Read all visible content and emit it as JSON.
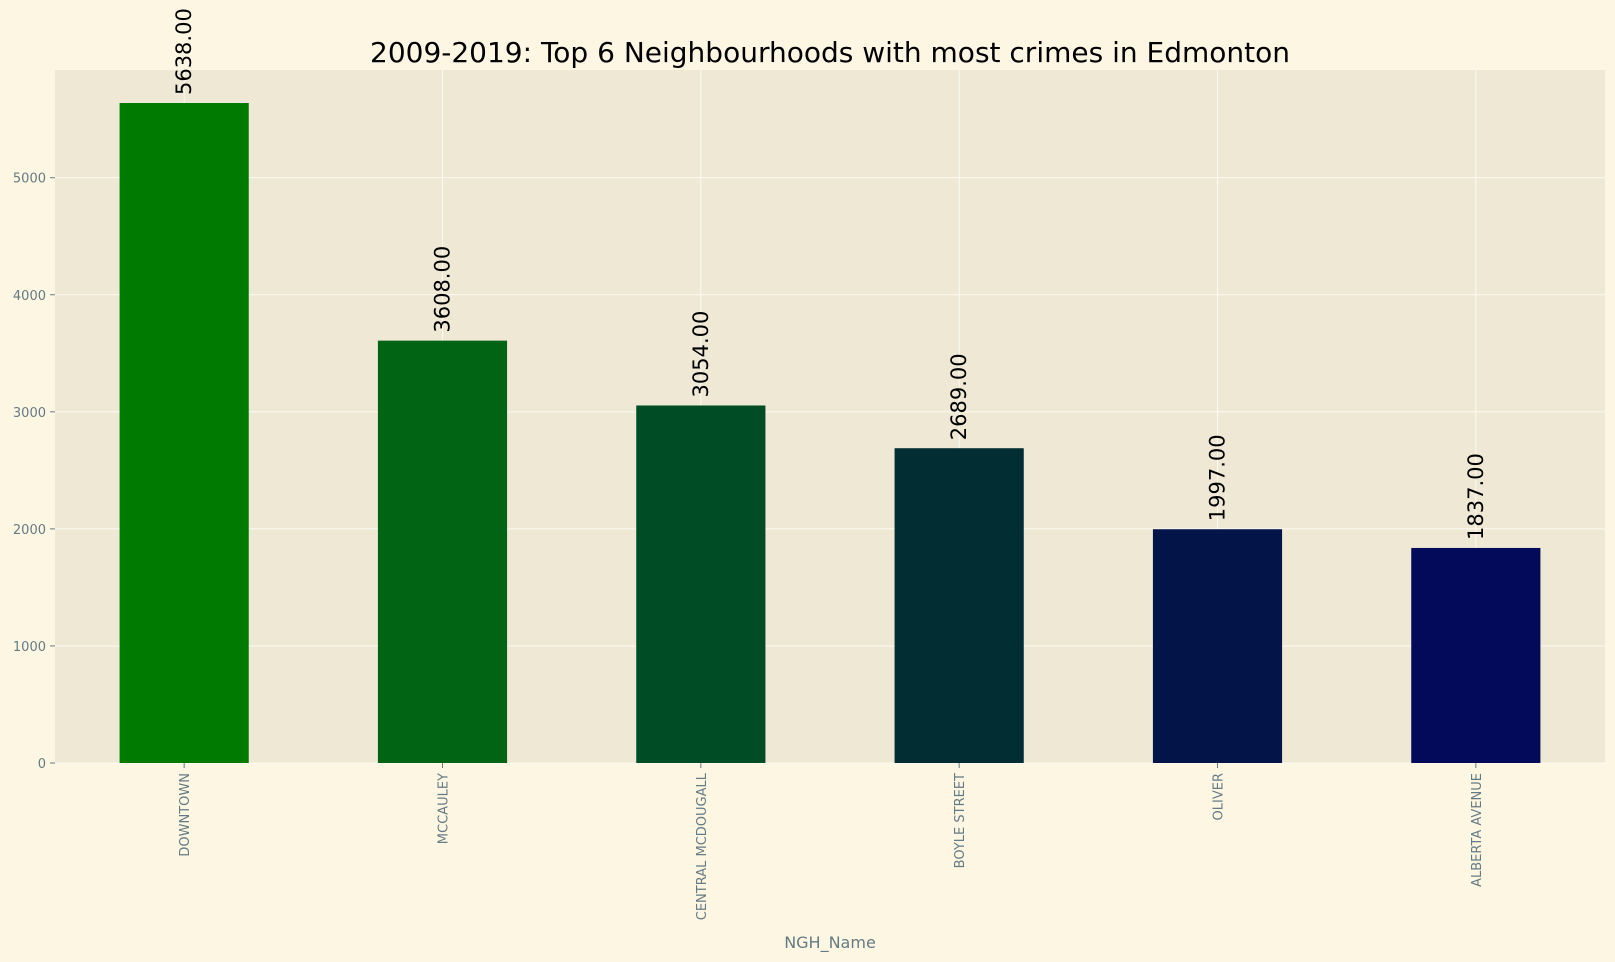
{
  "chart_data": {
    "type": "bar",
    "title": "2009-2019: Top 6 Neighbourhoods with most crimes in Edmonton",
    "xlabel": "NGH_Name",
    "ylabel": "",
    "categories": [
      "DOWNTOWN",
      "MCCAULEY",
      "CENTRAL MCDOUGALL",
      "BOYLE STREET",
      "OLIVER",
      "ALBERTA AVENUE"
    ],
    "values": [
      5638,
      3608,
      3054,
      2689,
      1997,
      1837
    ],
    "value_labels": [
      "5638.00",
      "3608.00",
      "3054.00",
      "2689.00",
      "1997.00",
      "1837.00"
    ],
    "bar_colors": [
      "#007a00",
      "#006414",
      "#004c24",
      "#012d33",
      "#031449",
      "#040a5a"
    ],
    "ylim": [
      0,
      5920
    ],
    "yticks": [
      0,
      1000,
      2000,
      3000,
      4000,
      5000
    ],
    "grid": true,
    "legend": "none",
    "colors": {
      "figure_background": "#fdf6e3",
      "axes_background": "#eee8d5",
      "grid": "#fdfaf0",
      "tick_text": "#657b83"
    }
  }
}
